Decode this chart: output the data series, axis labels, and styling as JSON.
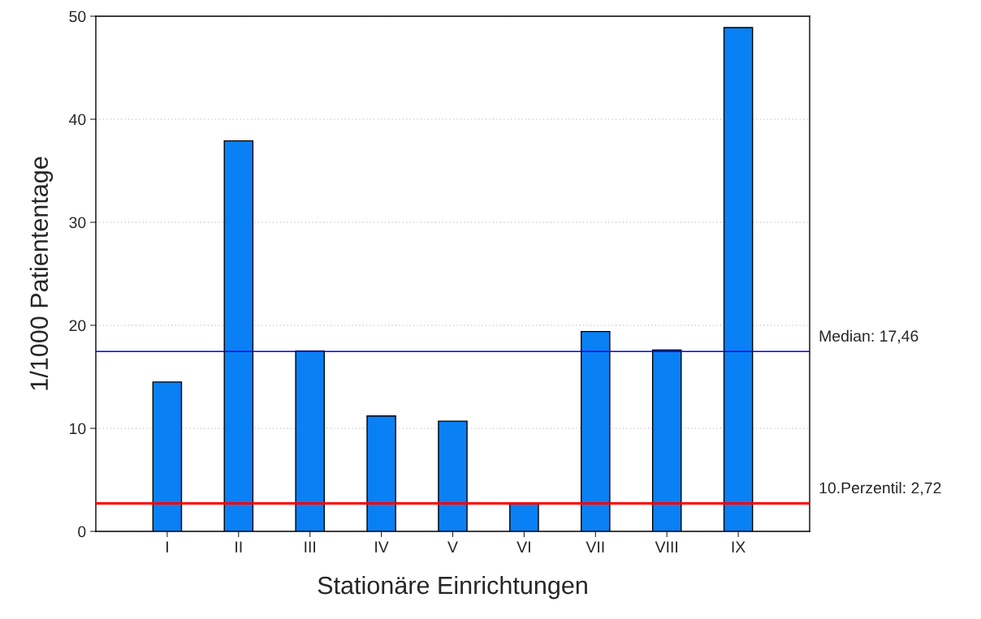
{
  "chart_data": {
    "type": "bar",
    "xlabel": "Stationäre Einrichtungen",
    "ylabel": "1/1000 Patiententage",
    "categories": [
      "I",
      "II",
      "III",
      "IV",
      "V",
      "VI",
      "VII",
      "VIII",
      "IX"
    ],
    "values": [
      14.5,
      37.9,
      17.5,
      11.2,
      10.7,
      2.7,
      19.4,
      17.6,
      48.9
    ],
    "color": "#0a80f5",
    "ylim": [
      0,
      50
    ],
    "yticks": [
      0,
      10,
      20,
      30,
      40,
      50
    ],
    "grid": "y",
    "ref_lines": [
      {
        "axis": "y",
        "value": 17.46,
        "label": "Median: 17,46",
        "color": "#0000ff"
      },
      {
        "axis": "y",
        "value": 2.72,
        "label": "10.Perzentil: 2,72",
        "color": "#ff0000"
      }
    ]
  }
}
